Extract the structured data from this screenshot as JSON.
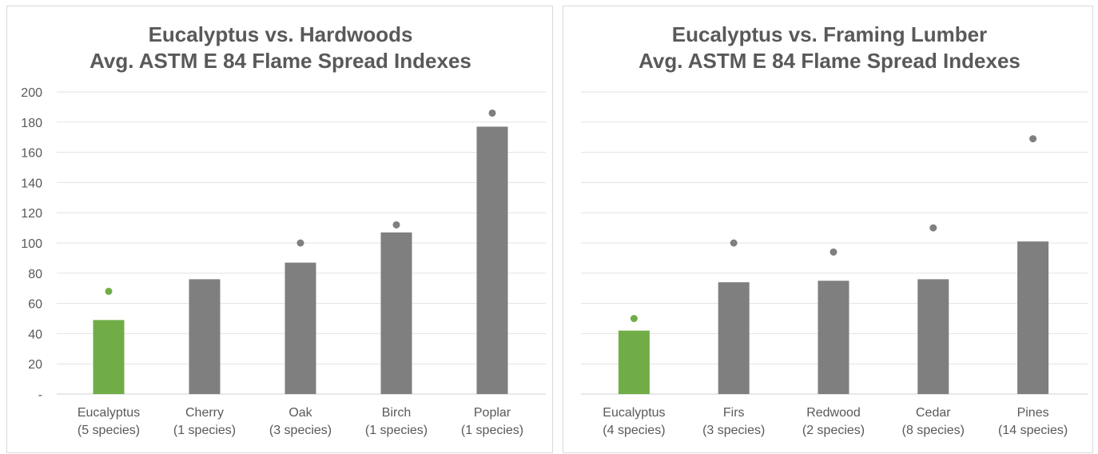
{
  "chart_data": [
    {
      "type": "bar",
      "title": "Eucalyptus vs. Hardwoods",
      "subtitle": "Avg. ASTM E 84 Flame Spread Indexes",
      "categories": [
        [
          "Eucalyptus",
          "(5 species)"
        ],
        [
          "Cherry",
          "(1 species)"
        ],
        [
          "Oak",
          "(3 species)"
        ],
        [
          "Birch",
          "(1 species)"
        ],
        [
          "Poplar",
          "(1 species)"
        ]
      ],
      "series": [
        {
          "values": [
            49,
            76,
            87,
            107,
            177
          ]
        },
        {
          "type": "scatter",
          "values": [
            68,
            null,
            100,
            112,
            186
          ]
        }
      ],
      "bar_colors": [
        "#70ad47",
        "#7f7f7f",
        "#7f7f7f",
        "#7f7f7f",
        "#7f7f7f"
      ],
      "ylim": [
        0,
        200
      ],
      "yticks": [
        "-",
        "20",
        "40",
        "60",
        "80",
        "100",
        "120",
        "140",
        "160",
        "180",
        "200"
      ],
      "show_ytick_labels": true,
      "grid": true,
      "legend": "none"
    },
    {
      "type": "bar",
      "title": "Eucalyptus vs. Framing Lumber",
      "subtitle": "Avg. ASTM E 84 Flame Spread Indexes",
      "categories": [
        [
          "Eucalyptus",
          "(4 species)"
        ],
        [
          "Firs",
          "(3 species)"
        ],
        [
          "Redwood",
          "(2 species)"
        ],
        [
          "Cedar",
          "(8 species)"
        ],
        [
          "Pines",
          "(14 species)"
        ]
      ],
      "series": [
        {
          "values": [
            42,
            74,
            75,
            76,
            101
          ]
        },
        {
          "type": "scatter",
          "values": [
            50,
            100,
            94,
            110,
            169
          ]
        }
      ],
      "bar_colors": [
        "#70ad47",
        "#7f7f7f",
        "#7f7f7f",
        "#7f7f7f",
        "#7f7f7f"
      ],
      "ylim": [
        0,
        200
      ],
      "yticks": [
        "-",
        "20",
        "40",
        "60",
        "80",
        "100",
        "120",
        "140",
        "160",
        "180",
        "200"
      ],
      "show_ytick_labels": false,
      "grid": true,
      "legend": "none"
    }
  ]
}
